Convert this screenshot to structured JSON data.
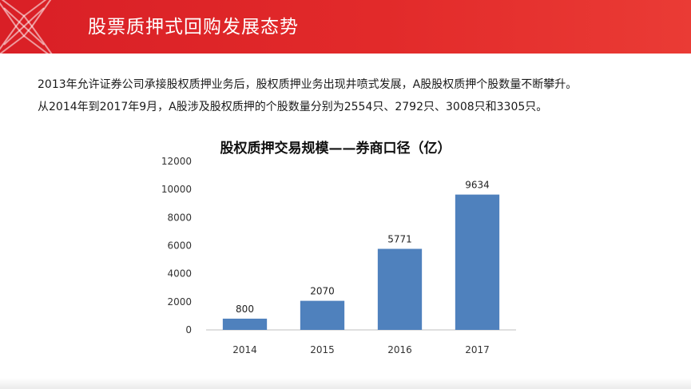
{
  "header": {
    "title": "股票质押式回购发展态势"
  },
  "intro": {
    "line1": "2013年允许证券公司承接股权质押业务后，股权质押业务出现井喷式发展，A股股权质押个股数量不断攀升。",
    "line2": "从2014年到2017年9月，A股涉及股权质押的个股数量分别为2554只、2792只、3008只和3305只。"
  },
  "colors": {
    "header": "#de2428",
    "bar": "#4f81bd"
  },
  "chart_data": {
    "type": "bar",
    "title": "股权质押交易规模——券商口径（亿）",
    "categories": [
      "2014",
      "2015",
      "2016",
      "2017"
    ],
    "values": [
      800,
      2070,
      5771,
      9634
    ],
    "data_labels": [
      "800",
      "2070",
      "5771",
      "9634"
    ],
    "xlabel": "",
    "ylabel": "",
    "ylim": [
      0,
      12000
    ],
    "yticks": [
      0,
      2000,
      4000,
      6000,
      8000,
      10000,
      12000
    ],
    "ytick_labels": [
      "0",
      "2000",
      "4000",
      "6000",
      "8000",
      "10000",
      "12000"
    ],
    "grid": false,
    "legend": "none"
  }
}
